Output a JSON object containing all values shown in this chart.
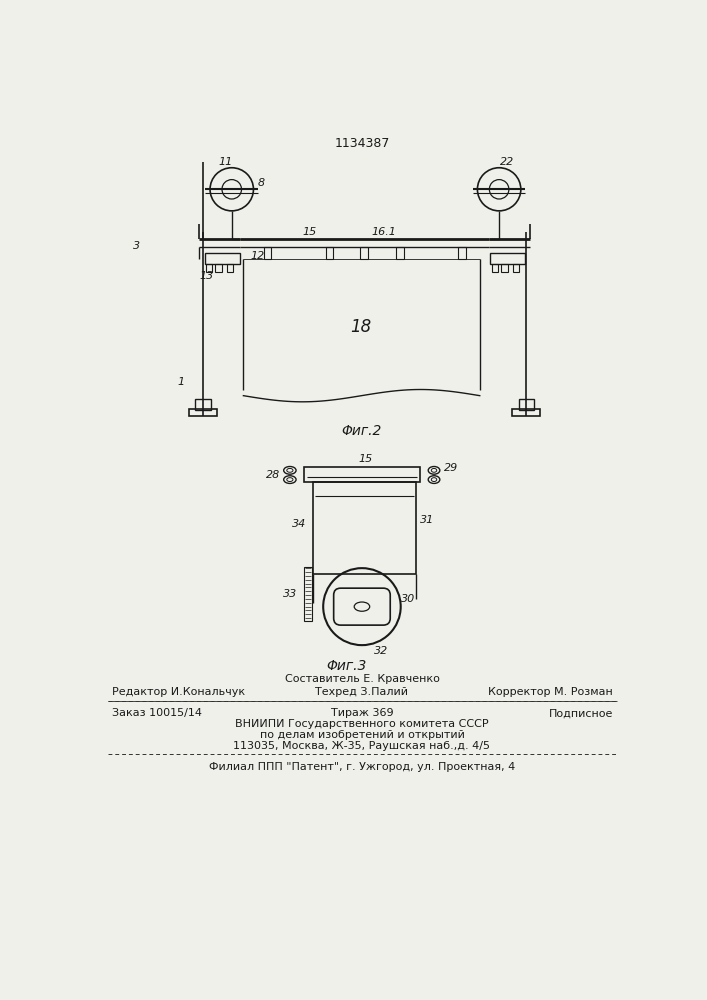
{
  "patent_number": "1134387",
  "fig2_caption": "Φиг.2",
  "fig3_caption": "Φиг.3",
  "bg_color": "#f0f0eb",
  "line_color": "#1a1a1a",
  "footer_line0": "Составитель Е. Кравченко",
  "footer_line1_left": "Редактор И.Кональчук",
  "footer_line1_center": "Техред З.Палий",
  "footer_line1_right": "Корректор М. Розман",
  "footer_line2_left": "Заказ 10015/14",
  "footer_line2_center": "Тираж 369",
  "footer_line2_right": "Подписное",
  "footer_line3": "ВНИИПИ Государственного комитета СССР",
  "footer_line4": "по делам изобретений и открытий",
  "footer_line5": "113035, Москва, Ж-35, Раушская наб.,д. 4/5",
  "footer_line6": "Филиал ППП \"Патент\", г. Ужгород, ул. Проектная, 4"
}
